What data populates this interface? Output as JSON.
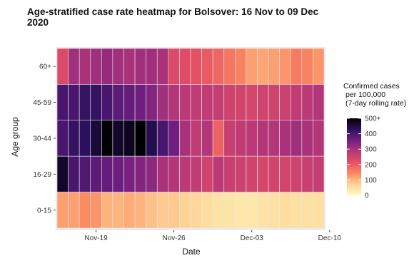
{
  "chart_data": {
    "type": "heatmap",
    "title_lines": [
      "Age-stratified case rate heatmap for Bolsover: 16 Nov to 09 Dec",
      "2020"
    ],
    "xlabel": "Date",
    "ylabel": "Age group",
    "x_tick_labels": [
      "Nov-19",
      "Nov-26",
      "Dec-03",
      "Dec-10"
    ],
    "x_tick_dates": [
      "2020-11-19",
      "2020-11-26",
      "2020-12-03",
      "2020-12-10"
    ],
    "x_range": [
      "2020-11-16",
      "2020-12-09"
    ],
    "dates": [
      "2020-11-16",
      "2020-11-17",
      "2020-11-18",
      "2020-11-19",
      "2020-11-20",
      "2020-11-21",
      "2020-11-22",
      "2020-11-23",
      "2020-11-24",
      "2020-11-25",
      "2020-11-26",
      "2020-11-27",
      "2020-11-28",
      "2020-11-29",
      "2020-11-30",
      "2020-12-01",
      "2020-12-02",
      "2020-12-03",
      "2020-12-04",
      "2020-12-05",
      "2020-12-06",
      "2020-12-07",
      "2020-12-08",
      "2020-12-09"
    ],
    "age_groups": [
      "60+",
      "45-59",
      "30-44",
      "16-29",
      "0-15"
    ],
    "values": [
      [
        230,
        310,
        300,
        310,
        320,
        310,
        300,
        310,
        310,
        300,
        230,
        225,
        215,
        200,
        185,
        165,
        150,
        120,
        115,
        120,
        130,
        160,
        150,
        130
      ],
      [
        400,
        400,
        420,
        420,
        400,
        380,
        370,
        360,
        340,
        310,
        290,
        280,
        270,
        270,
        265,
        250,
        245,
        240,
        250,
        250,
        255,
        270,
        280,
        290
      ],
      [
        400,
        420,
        430,
        460,
        510,
        470,
        480,
        500,
        440,
        400,
        360,
        300,
        270,
        290,
        190,
        260,
        270,
        280,
        290,
        290,
        300,
        310,
        300,
        290
      ],
      [
        470,
        400,
        390,
        380,
        370,
        360,
        350,
        340,
        330,
        300,
        290,
        280,
        270,
        250,
        280,
        260,
        255,
        250,
        240,
        245,
        245,
        250,
        260,
        265
      ],
      [
        120,
        120,
        140,
        130,
        100,
        100,
        110,
        100,
        90,
        80,
        80,
        70,
        65,
        55,
        45,
        40,
        35,
        35,
        45,
        50,
        55,
        50,
        50,
        50
      ]
    ],
    "legend": {
      "title_lines": [
        "Confirmed cases",
        "per 100,000",
        "(7-day rolling rate)"
      ],
      "ticks": [
        "0",
        "100",
        "200",
        "300",
        "400",
        "500+"
      ],
      "tick_values": [
        0,
        100,
        200,
        300,
        400,
        500
      ],
      "range": [
        0,
        500
      ],
      "placement": "right"
    },
    "colors": {
      "scale": [
        "#fcfdbf",
        "#fed395",
        "#fb8861",
        "#e55064",
        "#b73779",
        "#721f81",
        "#2c115f",
        "#000004"
      ],
      "panel_background": "#ebebeb",
      "cell_border": "#e8e8e8"
    }
  }
}
